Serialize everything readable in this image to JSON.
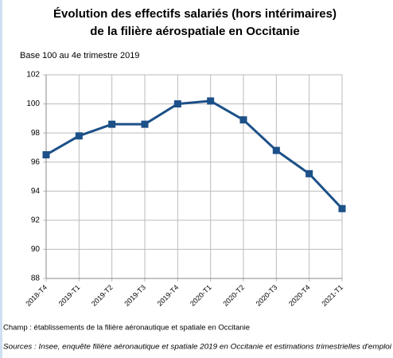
{
  "chart_data": {
    "type": "line",
    "title": [
      "Évolution des effectifs salariés (hors intérimaires)",
      "de la filière aérospatiale en Occitanie"
    ],
    "subtitle": "Base 100 au 4e trimestre 2019",
    "categories": [
      "2018-T4",
      "2019-T1",
      "2019-T2",
      "2019-T3",
      "2019-T4",
      "2020-T1",
      "2020-T2",
      "2020-T3",
      "2020-T4",
      "2021-T1"
    ],
    "values": [
      96.5,
      97.8,
      98.6,
      98.6,
      100.0,
      100.2,
      98.9,
      96.8,
      95.2,
      92.8
    ],
    "color": "#1c5088",
    "ylim": [
      88,
      102
    ],
    "yticks": [
      88,
      90,
      92,
      94,
      96,
      98,
      100,
      102
    ],
    "grid": true,
    "notes": [
      "Champ : établissements de la filière aéronautique et spatiale en Occitanie",
      "Sources : Insee, enquête filière aéronautique et spatiale 2019 en Occitanie et estimations trimestrielles d'emploi"
    ]
  }
}
